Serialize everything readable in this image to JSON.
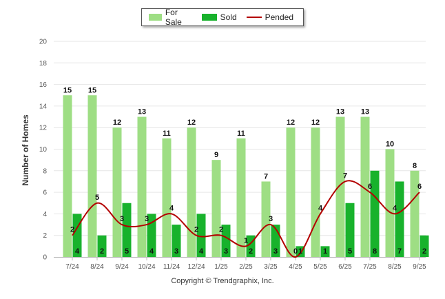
{
  "chart_data": {
    "type": "bar",
    "categories": [
      "7/24",
      "8/24",
      "9/24",
      "10/24",
      "11/24",
      "12/24",
      "1/25",
      "2/25",
      "3/25",
      "4/25",
      "5/25",
      "6/25",
      "7/25",
      "8/25",
      "9/25"
    ],
    "series": [
      {
        "name": "For Sale",
        "type": "bar",
        "color": "#9ede84",
        "values": [
          15,
          15,
          12,
          13,
          11,
          12,
          9,
          11,
          7,
          12,
          12,
          13,
          13,
          10,
          8
        ]
      },
      {
        "name": "Sold",
        "type": "bar",
        "color": "#18b22c",
        "values": [
          4,
          2,
          5,
          4,
          3,
          4,
          3,
          2,
          3,
          1,
          1,
          5,
          8,
          7,
          2
        ]
      },
      {
        "name": "Pended",
        "type": "line",
        "color": "#b30000",
        "values": [
          2,
          5,
          3,
          3,
          4,
          2,
          2,
          1,
          3,
          0,
          4,
          7,
          6,
          4,
          6
        ]
      }
    ],
    "ylabel": "Number of Homes",
    "ylim": [
      0,
      20
    ],
    "yticks": [
      0,
      2,
      4,
      6,
      8,
      10,
      12,
      14,
      16,
      18,
      20
    ],
    "grid": true,
    "legend": "top-center"
  },
  "footer": {
    "copyright": "Copyright © Trendgraphix, Inc."
  }
}
